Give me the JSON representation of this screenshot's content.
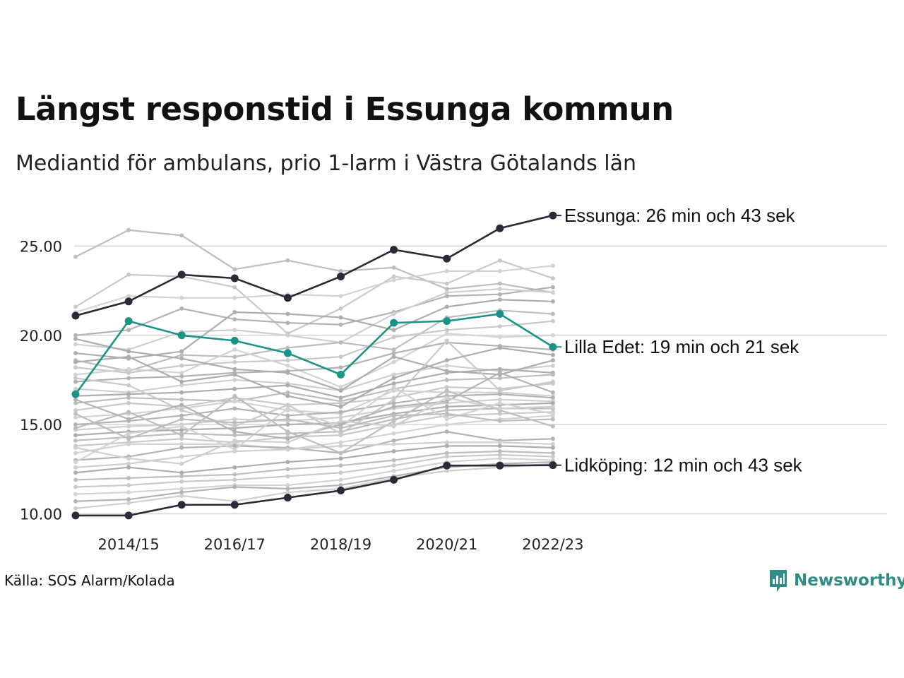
{
  "title": "Längst responstid i Essunga kommun",
  "subtitle": "Mediantid för ambulans, prio 1-larm i Västra Götalands län",
  "source": "Källa: SOS Alarm/Kolada",
  "logo": {
    "icon": "newsworthy-bar-chart-icon",
    "text": "Newsworthy"
  },
  "colors": {
    "highlight_dark": "#2b2b38",
    "highlight_teal": "#1b9488",
    "background_lines": "#c6c6c6",
    "grid": "#dddddd",
    "logo": "#2f8d86"
  },
  "chart_data": {
    "type": "line",
    "x": [
      "2013/14",
      "2014/15",
      "2015/16",
      "2016/17",
      "2017/18",
      "2018/19",
      "2019/20",
      "2020/21",
      "2021/22",
      "2022/23"
    ],
    "x_tick_labels": [
      "2014/15",
      "2016/17",
      "2018/19",
      "2020/21",
      "2022/23"
    ],
    "y_tick_labels": [
      "10.00",
      "15.00",
      "20.00",
      "25.00"
    ],
    "ylim": [
      9.5,
      27
    ],
    "grid": true,
    "highlighted_series": [
      {
        "name": "Essunga",
        "label": "Essunga: 26 min och 43 sek",
        "color": "#2b2b38",
        "values": [
          21.1,
          21.9,
          23.4,
          23.2,
          22.1,
          23.3,
          24.8,
          24.3,
          26.0,
          26.72
        ]
      },
      {
        "name": "Lilla Edet",
        "label": "Lilla Edet: 19 min och 21 sek",
        "color": "#1b9488",
        "values": [
          16.7,
          20.8,
          20.0,
          19.7,
          19.0,
          17.8,
          20.7,
          20.8,
          21.2,
          19.35
        ]
      },
      {
        "name": "Lidköping",
        "label": "Lidköping: 12 min och 43 sek",
        "color": "#2b2b38",
        "values": [
          9.9,
          9.9,
          10.5,
          10.5,
          10.9,
          11.3,
          11.9,
          12.7,
          12.7,
          12.72
        ]
      }
    ],
    "background_series": [
      [
        24.4,
        25.9,
        25.6,
        23.7,
        24.2,
        23.6,
        23.8,
        22.6,
        22.9,
        22.4
      ],
      [
        21.6,
        23.4,
        23.3,
        22.7,
        20.1,
        21.5,
        23.3,
        22.9,
        24.2,
        23.2
      ],
      [
        21.3,
        22.2,
        22.1,
        22.1,
        22.3,
        22.2,
        23.1,
        23.6,
        23.6,
        23.9
      ],
      [
        20.0,
        20.3,
        21.5,
        20.9,
        20.7,
        20.6,
        21.3,
        22.2,
        22.3,
        22.7
      ],
      [
        19.5,
        19.2,
        20.2,
        20.3,
        20.0,
        19.6,
        21.2,
        22.4,
        22.6,
        22.4
      ],
      [
        19.0,
        18.7,
        19.1,
        21.3,
        21.2,
        21.0,
        20.3,
        21.6,
        22.0,
        21.9
      ],
      [
        18.6,
        18.0,
        18.9,
        18.8,
        19.3,
        19.6,
        19.2,
        21.0,
        21.4,
        21.2
      ],
      [
        18.2,
        17.9,
        18.3,
        18.5,
        18.6,
        18.8,
        19.9,
        20.3,
        20.5,
        20.8
      ],
      [
        17.8,
        18.1,
        17.9,
        19.2,
        18.3,
        17.1,
        18.5,
        20.1,
        19.9,
        20.0
      ],
      [
        17.4,
        17.6,
        17.7,
        17.9,
        18.0,
        18.2,
        19.0,
        19.6,
        19.4,
        19.2
      ],
      [
        17.0,
        16.8,
        17.2,
        17.5,
        17.3,
        16.9,
        17.8,
        18.3,
        18.0,
        18.3
      ],
      [
        16.6,
        16.7,
        16.8,
        17.0,
        17.2,
        16.5,
        17.3,
        17.9,
        18.1,
        17.9
      ],
      [
        16.2,
        16.5,
        16.4,
        16.3,
        16.8,
        16.3,
        17.0,
        17.5,
        17.6,
        17.8
      ],
      [
        15.8,
        16.2,
        16.0,
        16.5,
        16.1,
        16.2,
        16.5,
        17.1,
        17.0,
        17.3
      ],
      [
        15.4,
        15.6,
        15.9,
        16.3,
        15.8,
        15.6,
        16.9,
        16.8,
        16.8,
        16.6
      ],
      [
        15.0,
        15.2,
        15.5,
        15.9,
        15.5,
        15.7,
        16.2,
        16.6,
        16.7,
        16.5
      ],
      [
        14.7,
        14.9,
        15.0,
        15.3,
        15.2,
        15.4,
        15.9,
        16.2,
        16.4,
        16.3
      ],
      [
        14.4,
        14.6,
        14.7,
        14.8,
        15.0,
        15.1,
        15.6,
        16.0,
        16.1,
        16.2
      ],
      [
        14.1,
        14.3,
        14.5,
        14.4,
        14.5,
        14.6,
        15.3,
        15.8,
        15.9,
        15.9
      ],
      [
        13.8,
        14.0,
        14.2,
        14.0,
        14.3,
        14.4,
        15.0,
        15.5,
        15.6,
        15.7
      ],
      [
        13.4,
        13.9,
        13.9,
        13.9,
        13.6,
        14.0,
        14.5,
        15.0,
        15.3,
        15.5
      ],
      [
        13.0,
        13.2,
        13.7,
        13.8,
        13.7,
        13.4,
        14.1,
        14.6,
        14.1,
        14.2
      ],
      [
        12.6,
        12.8,
        13.2,
        13.5,
        13.6,
        13.8,
        13.9,
        14.0,
        14.0,
        13.9
      ],
      [
        12.3,
        12.6,
        12.3,
        12.6,
        12.9,
        13.1,
        13.5,
        13.8,
        13.8,
        13.7
      ],
      [
        11.9,
        12.0,
        12.1,
        12.2,
        12.5,
        12.7,
        13.0,
        13.4,
        13.5,
        13.4
      ],
      [
        11.5,
        11.6,
        11.8,
        11.9,
        12.1,
        12.3,
        12.7,
        13.2,
        13.3,
        13.2
      ],
      [
        11.1,
        11.2,
        11.4,
        11.6,
        11.6,
        11.9,
        12.4,
        12.9,
        13.1,
        13.0
      ],
      [
        10.7,
        10.8,
        11.2,
        11.5,
        11.4,
        11.6,
        12.1,
        12.6,
        12.8,
        12.9
      ],
      [
        10.3,
        10.6,
        11.0,
        10.7,
        11.2,
        11.4,
        12.0,
        12.4,
        12.6,
        12.8
      ],
      [
        19.8,
        19.1,
        18.7,
        18.1,
        17.9,
        16.9,
        18.8,
        18.0,
        17.8,
        18.6
      ],
      [
        14.8,
        15.7,
        14.4,
        16.6,
        14.6,
        13.4,
        15.2,
        16.9,
        15.8,
        14.9
      ],
      [
        17.6,
        17.2,
        15.8,
        14.9,
        16.1,
        14.5,
        16.4,
        19.7,
        16.9,
        17.4
      ],
      [
        12.9,
        14.5,
        14.9,
        13.6,
        15.9,
        14.9,
        17.1,
        15.3,
        16.2,
        15.6
      ],
      [
        16.4,
        15.3,
        16.1,
        14.6,
        14.2,
        15.0,
        16.0,
        16.3,
        17.9,
        16.8
      ],
      [
        13.7,
        13.1,
        12.8,
        14.1,
        14.0,
        15.2,
        14.9,
        16.5,
        15.9,
        16.0
      ],
      [
        18.5,
        18.8,
        17.4,
        17.8,
        16.6,
        16.0,
        17.6,
        18.6,
        19.3,
        18.9
      ],
      [
        15.6,
        14.2,
        15.3,
        15.1,
        15.3,
        14.8,
        15.5,
        15.6,
        15.2,
        15.3
      ]
    ]
  }
}
